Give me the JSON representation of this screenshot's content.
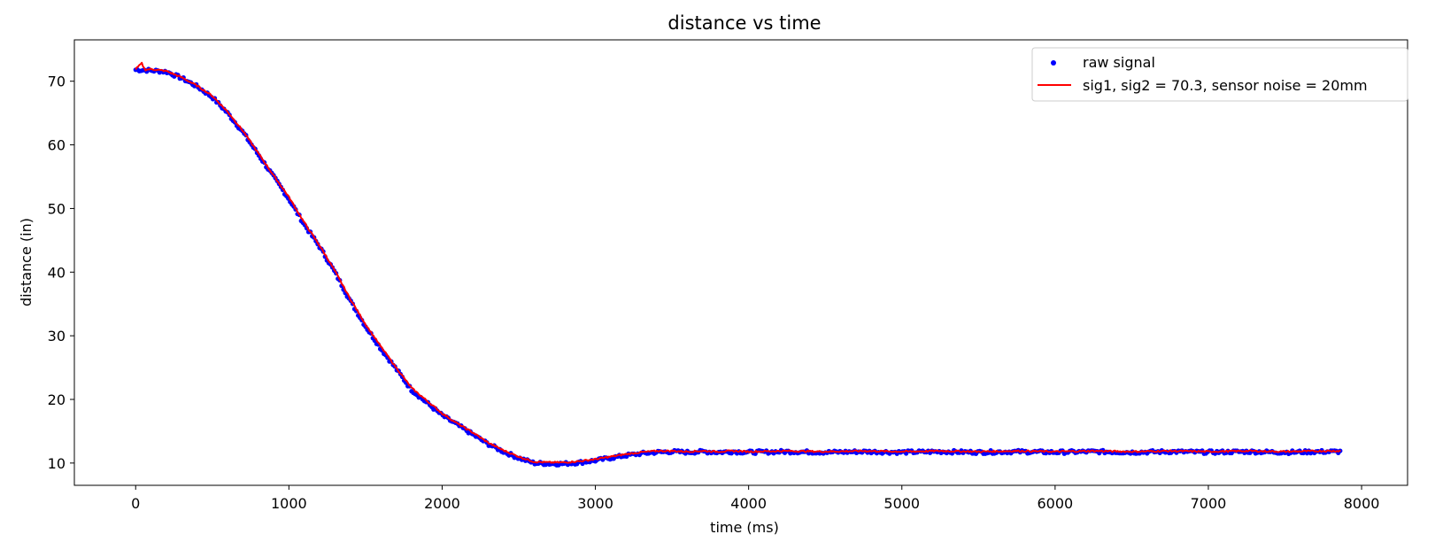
{
  "chart_data": {
    "type": "line",
    "title": "distance vs time",
    "xlabel": "time (ms)",
    "ylabel": "distance (in)",
    "xlim": [
      -400,
      8300
    ],
    "ylim": [
      6.5,
      76.5
    ],
    "xticks": [
      0,
      1000,
      2000,
      3000,
      4000,
      5000,
      6000,
      7000,
      8000
    ],
    "yticks": [
      10,
      20,
      30,
      40,
      50,
      60,
      70
    ],
    "grid": false,
    "legend": "top-right",
    "series": [
      {
        "name": "raw signal",
        "kind": "scatter",
        "color": "#0000ff",
        "x": [
          0,
          100,
          200,
          300,
          400,
          500,
          600,
          700,
          800,
          900,
          1000,
          1100,
          1200,
          1300,
          1400,
          1500,
          1600,
          1700,
          1800,
          1900,
          2000,
          2100,
          2200,
          2300,
          2400,
          2500,
          2600,
          2700,
          2800,
          2900,
          3000,
          3100,
          3200,
          3300,
          3400,
          3500,
          3600,
          3700,
          3800,
          3900,
          4000,
          4250,
          4500,
          4750,
          5000,
          5250,
          5500,
          5750,
          6000,
          6250,
          6500,
          6750,
          7000,
          7250,
          7500,
          7750,
          7870
        ],
        "y": [
          71.8,
          71.7,
          71.5,
          70.5,
          69.2,
          67.5,
          65.0,
          62.0,
          58.5,
          55.0,
          51.5,
          47.5,
          44.0,
          40.0,
          35.5,
          31.5,
          28.0,
          24.8,
          21.5,
          19.5,
          17.5,
          16.0,
          14.5,
          13.0,
          11.8,
          10.8,
          10.0,
          9.9,
          9.9,
          10.1,
          10.4,
          10.8,
          11.2,
          11.5,
          11.7,
          11.8,
          11.7,
          11.8,
          11.7,
          11.8,
          11.7,
          11.8,
          11.7,
          11.8,
          11.7,
          11.8,
          11.7,
          11.8,
          11.7,
          11.8,
          11.7,
          11.8,
          11.7,
          11.8,
          11.7,
          11.8,
          11.8
        ]
      },
      {
        "name": "sig1, sig2 = 70.3, sensor noise = 20mm",
        "kind": "line",
        "color": "#ff0000",
        "x": [
          0,
          40,
          60,
          100,
          200,
          300,
          400,
          500,
          600,
          700,
          800,
          900,
          1000,
          1100,
          1200,
          1300,
          1400,
          1500,
          1600,
          1700,
          1800,
          1900,
          2000,
          2100,
          2200,
          2300,
          2400,
          2500,
          2600,
          2700,
          2800,
          2900,
          3000,
          3100,
          3200,
          3300,
          3400,
          3500,
          3600,
          3700,
          3800,
          3900,
          4000,
          4250,
          4500,
          4750,
          5000,
          5250,
          5500,
          5750,
          6000,
          6250,
          6500,
          6750,
          7000,
          7250,
          7500,
          7750,
          7870
        ],
        "y": [
          71.9,
          72.8,
          71.8,
          71.9,
          71.6,
          70.6,
          69.3,
          67.7,
          65.2,
          62.2,
          58.7,
          55.2,
          51.8,
          47.8,
          44.2,
          40.2,
          35.8,
          31.8,
          28.3,
          25.0,
          21.8,
          19.8,
          17.8,
          16.2,
          14.8,
          13.2,
          12.0,
          11.0,
          10.2,
          10.1,
          10.1,
          10.3,
          10.6,
          11.0,
          11.4,
          11.7,
          11.9,
          11.9,
          11.8,
          11.9,
          11.8,
          11.9,
          11.8,
          11.9,
          11.8,
          11.9,
          11.8,
          11.9,
          11.8,
          11.9,
          11.8,
          11.9,
          11.8,
          11.9,
          11.8,
          11.9,
          11.8,
          11.9,
          11.9
        ]
      }
    ]
  }
}
